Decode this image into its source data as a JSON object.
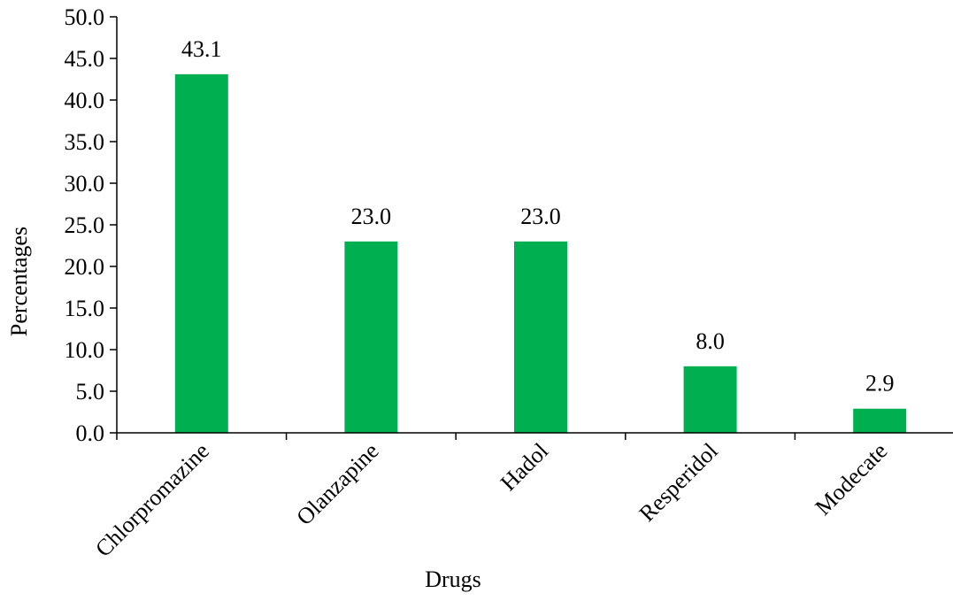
{
  "chart_data": {
    "type": "bar",
    "categories": [
      "Chlorpromazine",
      "Olanzapine",
      "Hadol",
      "Resperidol",
      "Modecate"
    ],
    "values": [
      43.1,
      23.0,
      23.0,
      8.0,
      2.9
    ],
    "data_labels": [
      "43.1",
      "23.0",
      "23.0",
      "8.0",
      "2.9"
    ],
    "xlabel": "Drugs",
    "ylabel": "Percentages",
    "ylim": [
      0,
      50
    ],
    "yticks": [
      "0.0",
      "5.0",
      "10.0",
      "15.0",
      "20.0",
      "25.0",
      "30.0",
      "35.0",
      "40.0",
      "45.0",
      "50.0"
    ],
    "grid": false,
    "legend": "none",
    "bar_color": "#00b050"
  }
}
